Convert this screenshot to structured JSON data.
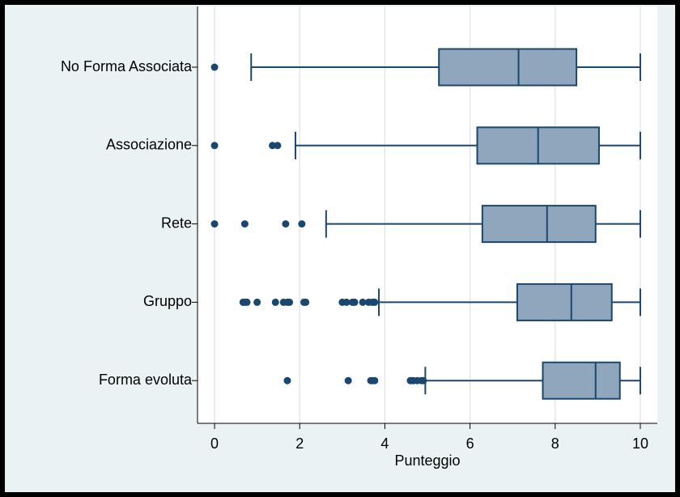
{
  "chart_data": {
    "type": "box",
    "orientation": "horizontal",
    "x_label": "Punteggio",
    "categories": [
      "No Forma Associata",
      "Associazione",
      "Rete",
      "Gruppo",
      "Forma evoluta"
    ],
    "boxes": [
      {
        "min": 0.86,
        "q1": 5.27,
        "median": 7.14,
        "q3": 8.5,
        "max": 10,
        "outliers": [
          0
        ]
      },
      {
        "min": 1.9,
        "q1": 6.17,
        "median": 7.6,
        "q3": 9.03,
        "max": 10,
        "outliers": [
          0,
          1.36,
          1.48
        ]
      },
      {
        "min": 2.62,
        "q1": 6.29,
        "median": 7.81,
        "q3": 8.95,
        "max": 10,
        "outliers": [
          0,
          0.71,
          1.67,
          2.05
        ]
      },
      {
        "min": 3.86,
        "q1": 7.11,
        "median": 8.38,
        "q3": 9.33,
        "max": 10,
        "outliers": [
          0.67,
          0.71,
          0.76,
          1.0,
          1.43,
          1.62,
          1.71,
          1.76,
          2.1,
          2.14,
          3.0,
          3.1,
          3.24,
          3.29,
          3.48,
          3.62,
          3.71,
          3.76
        ]
      },
      {
        "min": 4.95,
        "q1": 7.71,
        "median": 8.95,
        "q3": 9.52,
        "max": 10,
        "outliers": [
          1.71,
          3.14,
          3.67,
          3.71,
          3.76,
          4.6,
          4.67,
          4.76,
          4.86,
          4.9
        ]
      }
    ],
    "box_color": "#8fa6bd",
    "line_color": "#1a476f",
    "xlim": [
      -0.4,
      10.4
    ],
    "xticks": [
      0,
      2,
      4,
      6,
      8,
      10
    ],
    "grid": true
  }
}
